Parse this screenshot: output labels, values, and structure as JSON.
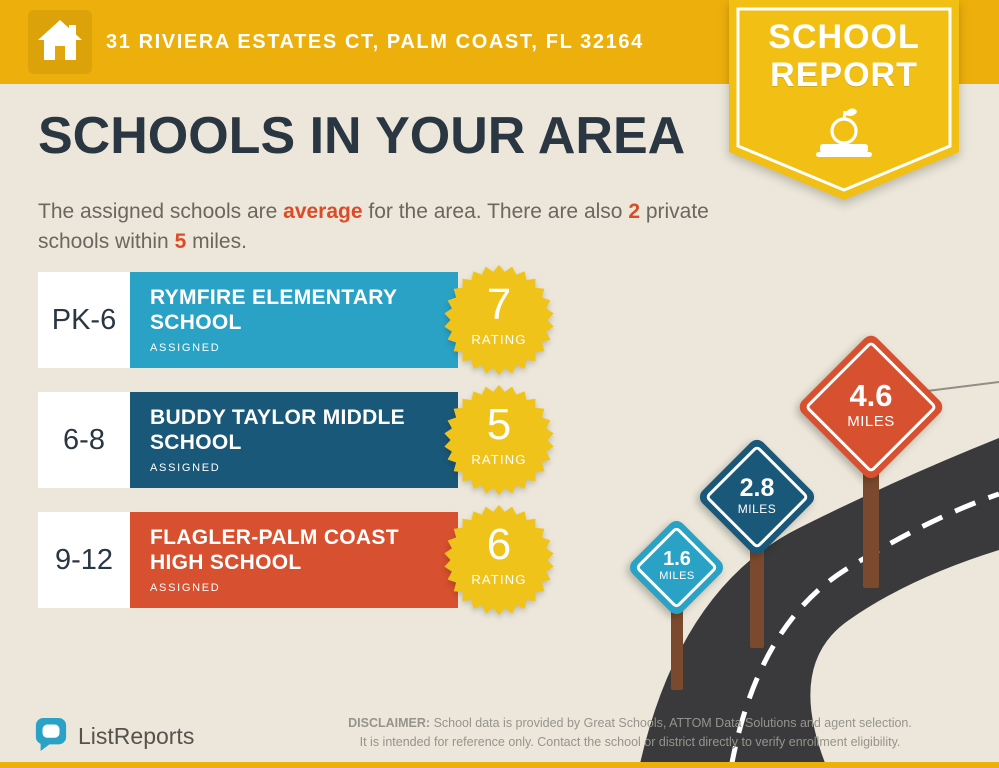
{
  "theme": {
    "header_gold": "#EDAF0B",
    "ribbon_gold": "#F2C014",
    "badge_gold": "#F0C31A",
    "background": "#ECE7DA",
    "title_color": "#2A3642",
    "accent_orange": "#DD4B26",
    "road_color": "#3A3A3C",
    "post_brown": "#7B4A2E",
    "brand_teal": "#2AA2C6"
  },
  "header": {
    "address": "31 RIVIERA ESTATES CT, PALM COAST, FL 32164",
    "ribbon": {
      "line1": "SCHOOL",
      "line2": "REPORT"
    }
  },
  "main": {
    "title": "SCHOOLS IN YOUR AREA",
    "subtitle": {
      "part1": "The assigned schools are ",
      "highlight1": "average",
      "part2": " for the area. There are also ",
      "highlight2": "2",
      "part3": " private schools within ",
      "highlight3": "5",
      "part4": " miles."
    }
  },
  "schools": [
    {
      "grades": "PK-6",
      "name": "RYMFIRE ELEMENTARY SCHOOL",
      "status": "ASSIGNED",
      "rating": "7",
      "rating_label": "RATING",
      "color": "#2AA2C6"
    },
    {
      "grades": "6-8",
      "name": "BUDDY TAYLOR MIDDLE SCHOOL",
      "status": "ASSIGNED",
      "rating": "5",
      "rating_label": "RATING",
      "color": "#1A587A"
    },
    {
      "grades": "9-12",
      "name": "FLAGLER-PALM COAST HIGH SCHOOL",
      "status": "ASSIGNED",
      "rating": "6",
      "rating_label": "RATING",
      "color": "#D7502F"
    }
  ],
  "signs": [
    {
      "distance": "1.6",
      "unit": "MILES",
      "color": "#2AA2C6"
    },
    {
      "distance": "2.8",
      "unit": "MILES",
      "color": "#1A587A"
    },
    {
      "distance": "4.6",
      "unit": "MILES",
      "color": "#D7502F"
    }
  ],
  "footer": {
    "brand": "ListReports",
    "disclaimer_label": "DISCLAIMER:",
    "disclaimer_line1": " School data is provided by Great Schools, ATTOM Data Solutions and agent selection.",
    "disclaimer_line2": "It is intended for reference only. Contact the school or district directly to verify enrollment eligibility."
  },
  "icons": {
    "header": "house-icon",
    "ribbon": "apple-book-icon",
    "footer": "chat-bubble-icon"
  }
}
